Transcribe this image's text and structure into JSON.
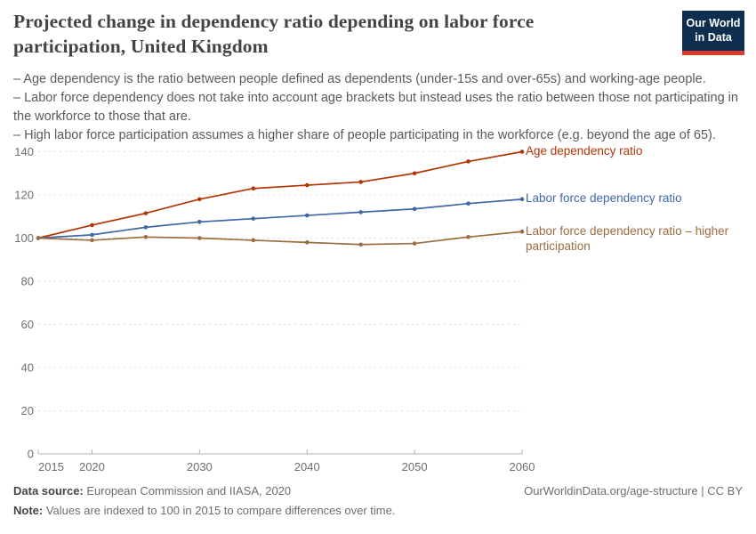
{
  "header": {
    "title": "Projected change in dependency ratio depending on labor force participation, United Kingdom",
    "logo": {
      "line1": "Our World",
      "line2": "in Data",
      "bg_color": "#0d2e4e",
      "bar_color": "#d93a2e"
    }
  },
  "subtitle": {
    "lines": [
      "– Age dependency is the ratio between people defined as dependents (under-15s and over-65s) and working-age people.",
      "– Labor force dependency does not take into account age brackets but instead uses the ratio between those not participating in the workforce to those that are.",
      "– High labor force participation assumes a higher share of people participating in the workforce (e.g. beyond the age of 65)."
    ]
  },
  "chart_data": {
    "type": "line",
    "title": "Projected change in dependency ratio depending on labor force participation, United Kingdom",
    "x": [
      2015,
      2020,
      2025,
      2030,
      2035,
      2040,
      2045,
      2050,
      2055,
      2060
    ],
    "series": [
      {
        "name": "Age dependency ratio",
        "color": "#b13507",
        "values": [
          100,
          106,
          111.5,
          118,
          123,
          124.5,
          126,
          130,
          135.5,
          140
        ]
      },
      {
        "name": "Labor force dependency ratio",
        "color": "#3f68a6",
        "values": [
          100,
          101.5,
          105,
          107.5,
          109,
          110.5,
          112,
          113.5,
          116,
          118
        ]
      },
      {
        "name": "Labor force dependency ratio – higher participation",
        "color": "#9c6d3e",
        "values": [
          100,
          99,
          100.5,
          100,
          99,
          98,
          97,
          97.5,
          100.5,
          103
        ]
      }
    ],
    "ylim": [
      0,
      140
    ],
    "yticks": [
      0,
      20,
      40,
      60,
      80,
      100,
      120,
      140
    ],
    "xticks": [
      2015,
      2020,
      2030,
      2040,
      2050,
      2060
    ],
    "xlabel": "",
    "ylabel": "",
    "grid": "horizontal-dashed",
    "legend_position": "right-of-lines",
    "axis_color": "#b3b3b3",
    "grid_color": "#dedede",
    "tick_label_color": "#6e6e6e"
  },
  "footer": {
    "source_label": "Data source:",
    "source_text": " European Commission and IIASA, 2020",
    "note_label": "Note:",
    "note_text": " Values are indexed to 100 in 2015 to compare differences over time.",
    "link": "OurWorldinData.org/age-structure | CC BY"
  }
}
